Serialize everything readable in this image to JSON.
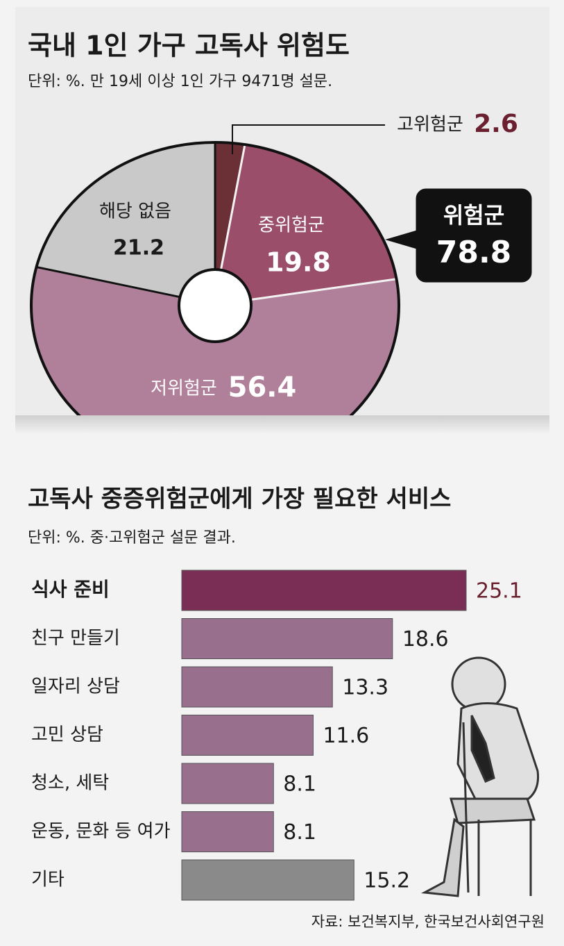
{
  "chart_data": [
    {
      "type": "donut",
      "title": "국내 1인 가구 고독사 위험도",
      "subtitle": "단위: %. 만 19세 이상 1인 가구 9471명 설문.",
      "categories": [
        "고위험군",
        "중위험군",
        "저위험군",
        "해당 없음"
      ],
      "values": [
        2.6,
        19.8,
        56.4,
        21.2
      ],
      "colors": [
        "#6b2f36",
        "#9a4e6a",
        "#b07f99",
        "#c9c9c9"
      ],
      "annotation": {
        "label": "위험군",
        "value": 78.8
      }
    },
    {
      "type": "barh",
      "title": "고독사 중증위험군에게 가장 필요한 서비스",
      "subtitle": "단위: %. 중·고위험군 설문 결과.",
      "categories": [
        "식사 준비",
        "친구 만들기",
        "일자리 상담",
        "고민 상담",
        "청소, 세탁",
        "운동, 문화 등 여가",
        "기타"
      ],
      "values": [
        25.1,
        18.6,
        13.3,
        11.6,
        8.1,
        8.1,
        15.2
      ],
      "colors": [
        "#7b2e55",
        "#98708e",
        "#98708e",
        "#98708e",
        "#98708e",
        "#98708e",
        "#8a8a8a"
      ],
      "source": "자료: 보건복지부, 한국보건사회연구원"
    }
  ]
}
